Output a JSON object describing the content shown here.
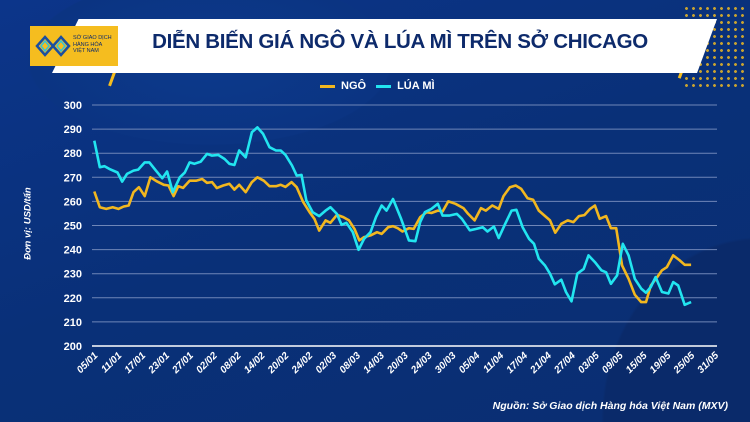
{
  "header": {
    "logo_text": "SỞ GIAO DỊCH HÀNG HÓA VIỆT NAM",
    "title": "DIỄN BIẾN GIÁ NGÔ VÀ LÚA MÌ TRÊN SỞ CHICAGO"
  },
  "source": "Nguồn: Sở Giao dịch Hàng hóa Việt Nam (MXV)",
  "colors": {
    "corn": "#f2b71f",
    "wheat": "#22e5f0",
    "background": "#0a3078",
    "grid": "#6f86b8"
  },
  "chart_data": {
    "type": "line",
    "title": "DIỄN BIẾN GIÁ NGÔ VÀ LÚA MÌ TRÊN SỞ CHICAGO",
    "ylabel": "Đơn vị: USD/tấn",
    "xlabel": "",
    "ylim": [
      200,
      300
    ],
    "yticks": [
      "200",
      "210",
      "220",
      "230",
      "240",
      "250",
      "260",
      "270",
      "280",
      "290",
      "300"
    ],
    "xticks": [
      "05/01",
      "11/01",
      "17/01",
      "23/01",
      "27/01",
      "02/02",
      "08/02",
      "14/02",
      "20/02",
      "24/02",
      "02/03",
      "08/03",
      "14/03",
      "20/03",
      "24/03",
      "30/03",
      "05/04",
      "11/04",
      "17/04",
      "21/04",
      "27/04",
      "03/05",
      "09/05",
      "15/05",
      "19/05",
      "25/05",
      "31/05"
    ],
    "x_note_unit": "x = position along date-tick axis (tick index)",
    "grid": true,
    "legend_position": "top-center",
    "series": [
      {
        "name": "NGÔ",
        "color": "#f2b71f",
        "points": [
          [
            0,
            264.1
          ],
          [
            0.23,
            257.6
          ],
          [
            0.5,
            256.9
          ],
          [
            0.77,
            257.6
          ],
          [
            1.01,
            256.9
          ],
          [
            1.23,
            257.9
          ],
          [
            1.44,
            258.3
          ],
          [
            1.64,
            263.8
          ],
          [
            1.87,
            265.9
          ],
          [
            2.11,
            262.2
          ],
          [
            2.35,
            270
          ],
          [
            2.64,
            268.2
          ],
          [
            2.91,
            266.9
          ],
          [
            3.11,
            266.6
          ],
          [
            3.32,
            262.2
          ],
          [
            3.52,
            266.3
          ],
          [
            3.72,
            265.6
          ],
          [
            3.99,
            268.6
          ],
          [
            4.26,
            268.6
          ],
          [
            4.52,
            269.3
          ],
          [
            4.72,
            267.7
          ],
          [
            4.93,
            268
          ],
          [
            5.13,
            265.5
          ],
          [
            5.4,
            266.6
          ],
          [
            5.66,
            267.3
          ],
          [
            5.87,
            264.9
          ],
          [
            6.07,
            266.9
          ],
          [
            6.34,
            263.8
          ],
          [
            6.6,
            268
          ],
          [
            6.83,
            270
          ],
          [
            7.1,
            268.6
          ],
          [
            7.34,
            266.3
          ],
          [
            7.61,
            266.3
          ],
          [
            7.81,
            266.9
          ],
          [
            8.01,
            266
          ],
          [
            8.26,
            268
          ],
          [
            8.48,
            265.9
          ],
          [
            8.75,
            259.7
          ],
          [
            9.02,
            255.5
          ],
          [
            9.22,
            252.8
          ],
          [
            9.42,
            247.9
          ],
          [
            9.69,
            252.1
          ],
          [
            9.89,
            251.1
          ],
          [
            10.16,
            254.4
          ],
          [
            10.43,
            253.5
          ],
          [
            10.67,
            252.1
          ],
          [
            10.9,
            248.6
          ],
          [
            11.1,
            243.8
          ],
          [
            11.3,
            245.2
          ],
          [
            11.57,
            245.9
          ],
          [
            11.84,
            247.2
          ],
          [
            12.04,
            246.5
          ],
          [
            12.31,
            249.3
          ],
          [
            12.51,
            249.7
          ],
          [
            12.71,
            248.9
          ],
          [
            12.91,
            247.5
          ],
          [
            13.18,
            248.9
          ],
          [
            13.38,
            248.6
          ],
          [
            13.65,
            253.5
          ],
          [
            13.92,
            255.5
          ],
          [
            14.12,
            255.2
          ],
          [
            14.39,
            256.2
          ],
          [
            14.59,
            255.8
          ],
          [
            14.83,
            260
          ],
          [
            15.13,
            259
          ],
          [
            15.46,
            257.2
          ],
          [
            15.66,
            254.8
          ],
          [
            15.93,
            252.1
          ],
          [
            16.2,
            257.2
          ],
          [
            16.4,
            256.2
          ],
          [
            16.67,
            258.3
          ],
          [
            16.94,
            256.9
          ],
          [
            17.14,
            262.2
          ],
          [
            17.41,
            265.9
          ],
          [
            17.65,
            266.6
          ],
          [
            17.88,
            265.2
          ],
          [
            18.15,
            261.3
          ],
          [
            18.38,
            260.7
          ],
          [
            18.62,
            256.2
          ],
          [
            19.09,
            252.1
          ],
          [
            19.31,
            247
          ],
          [
            19.56,
            250.7
          ],
          [
            19.83,
            252.1
          ],
          [
            20.07,
            251.4
          ],
          [
            20.3,
            253.9
          ],
          [
            20.53,
            254.3
          ],
          [
            20.77,
            256.9
          ],
          [
            20.97,
            258.3
          ],
          [
            21.17,
            252.8
          ],
          [
            21.44,
            253.9
          ],
          [
            21.64,
            248.9
          ],
          [
            21.86,
            248.9
          ],
          [
            22.11,
            233.4
          ],
          [
            22.38,
            227.9
          ],
          [
            22.64,
            221.3
          ],
          [
            22.91,
            218.2
          ],
          [
            23.11,
            218.2
          ],
          [
            23.31,
            225.1
          ],
          [
            23.58,
            228.6
          ],
          [
            23.78,
            231.4
          ],
          [
            23.98,
            232.7
          ],
          [
            24.25,
            237.6
          ],
          [
            24.52,
            235.5
          ],
          [
            24.73,
            233.7
          ],
          [
            25,
            233.7
          ]
        ]
      },
      {
        "name": "LÚA MÌ",
        "color": "#22e5f0",
        "points": [
          [
            0,
            285.2
          ],
          [
            0.23,
            274.2
          ],
          [
            0.43,
            274.6
          ],
          [
            0.63,
            273.5
          ],
          [
            0.97,
            272
          ],
          [
            1.17,
            268.2
          ],
          [
            1.37,
            271.4
          ],
          [
            1.64,
            272.8
          ],
          [
            1.84,
            273.2
          ],
          [
            2.11,
            276.2
          ],
          [
            2.31,
            276.2
          ],
          [
            2.58,
            272.8
          ],
          [
            2.85,
            269.6
          ],
          [
            3.05,
            272.4
          ],
          [
            3.29,
            263.8
          ],
          [
            3.58,
            270
          ],
          [
            3.79,
            272
          ],
          [
            3.99,
            276.2
          ],
          [
            4.19,
            275.6
          ],
          [
            4.46,
            276.5
          ],
          [
            4.72,
            279.7
          ],
          [
            4.93,
            279
          ],
          [
            5.19,
            279.3
          ],
          [
            5.46,
            277.6
          ],
          [
            5.66,
            275.6
          ],
          [
            5.87,
            275.1
          ],
          [
            6.07,
            281.1
          ],
          [
            6.34,
            278.3
          ],
          [
            6.6,
            288.7
          ],
          [
            6.83,
            290.7
          ],
          [
            7.07,
            288
          ],
          [
            7.34,
            282.5
          ],
          [
            7.61,
            281.1
          ],
          [
            7.81,
            281.1
          ],
          [
            8.01,
            279.3
          ],
          [
            8.28,
            274.9
          ],
          [
            8.48,
            270.7
          ],
          [
            8.68,
            271
          ],
          [
            8.88,
            260.4
          ],
          [
            9.15,
            255.5
          ],
          [
            9.42,
            253.9
          ],
          [
            9.69,
            256.2
          ],
          [
            9.89,
            257.6
          ],
          [
            10.16,
            254.8
          ],
          [
            10.36,
            250.3
          ],
          [
            10.56,
            251.1
          ],
          [
            10.83,
            247.2
          ],
          [
            11.07,
            239.9
          ],
          [
            11.3,
            244.5
          ],
          [
            11.57,
            247.2
          ],
          [
            11.8,
            253.5
          ],
          [
            12.04,
            258.3
          ],
          [
            12.24,
            256.2
          ],
          [
            12.51,
            261
          ],
          [
            12.85,
            252.8
          ],
          [
            13.18,
            243.8
          ],
          [
            13.45,
            243.5
          ],
          [
            13.65,
            251.4
          ],
          [
            13.85,
            255.5
          ],
          [
            14.12,
            256.9
          ],
          [
            14.39,
            259
          ],
          [
            14.59,
            254.1
          ],
          [
            14.86,
            254.1
          ],
          [
            15.19,
            254.8
          ],
          [
            15.4,
            252.8
          ],
          [
            15.73,
            248
          ],
          [
            16,
            248.6
          ],
          [
            16.27,
            249.3
          ],
          [
            16.47,
            247.5
          ],
          [
            16.74,
            249.6
          ],
          [
            16.94,
            244.8
          ],
          [
            17.21,
            250.7
          ],
          [
            17.48,
            256.2
          ],
          [
            17.68,
            256.5
          ],
          [
            17.94,
            249.3
          ],
          [
            18.21,
            244.5
          ],
          [
            18.42,
            242.4
          ],
          [
            18.62,
            236.2
          ],
          [
            18.88,
            233.4
          ],
          [
            19.09,
            230
          ],
          [
            19.29,
            225.6
          ],
          [
            19.56,
            227.5
          ],
          [
            19.76,
            222.4
          ],
          [
            19.99,
            218.5
          ],
          [
            20.23,
            230
          ],
          [
            20.5,
            232
          ],
          [
            20.7,
            237.6
          ],
          [
            20.97,
            234.8
          ],
          [
            21.24,
            231.4
          ],
          [
            21.44,
            230.6
          ],
          [
            21.64,
            225.8
          ],
          [
            21.9,
            229.3
          ],
          [
            22.14,
            242.4
          ],
          [
            22.38,
            237.6
          ],
          [
            22.64,
            227.9
          ],
          [
            22.91,
            223.8
          ],
          [
            23.11,
            222.1
          ],
          [
            23.31,
            224.5
          ],
          [
            23.51,
            228.6
          ],
          [
            23.78,
            222.4
          ],
          [
            24.05,
            221.8
          ],
          [
            24.25,
            226.5
          ],
          [
            24.46,
            225.1
          ],
          [
            24.73,
            217.1
          ],
          [
            25,
            218.2
          ]
        ]
      }
    ]
  }
}
